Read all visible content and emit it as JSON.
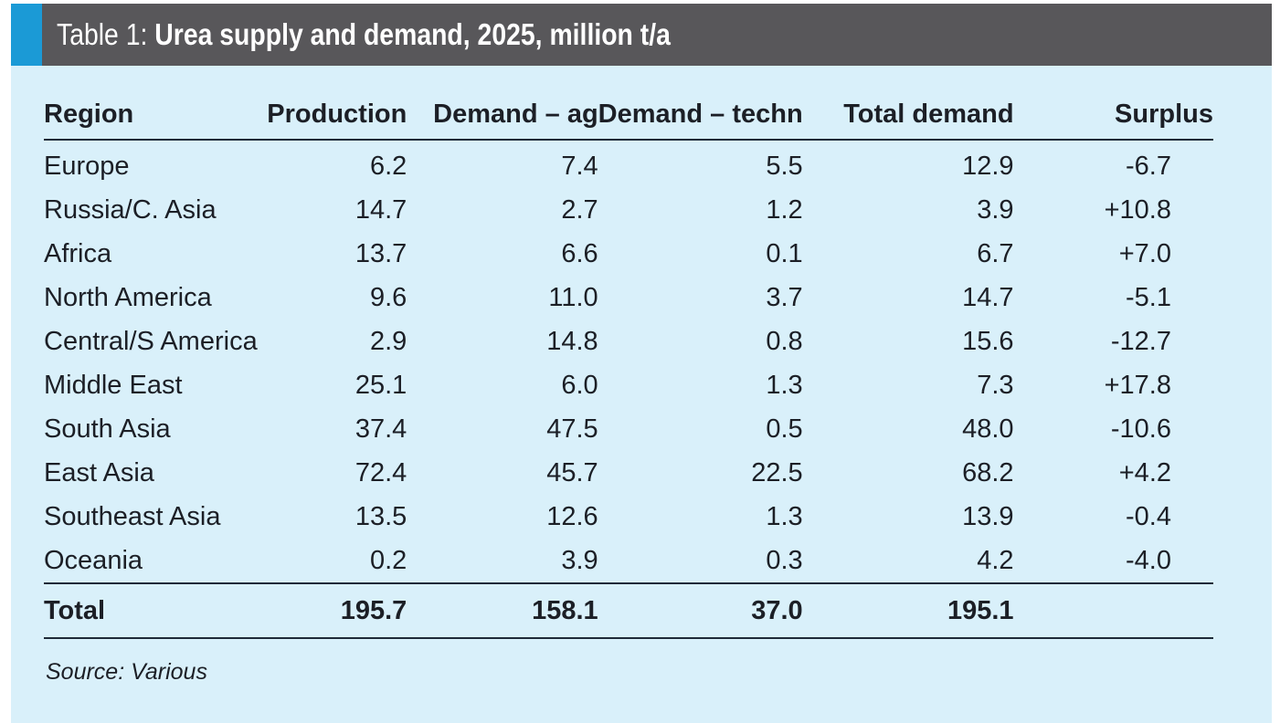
{
  "title": {
    "prefix": "Table 1: ",
    "main": "Urea supply and demand, 2025, million t/a"
  },
  "colors": {
    "header_bg": "#58575a",
    "accent": "#1b9ad6",
    "panel_bg": "#d9f0fa",
    "text": "#1c1f26"
  },
  "table": {
    "columns": [
      "Region",
      "Production",
      "Demand – ag",
      "Demand – techn",
      "Total demand",
      "Surplus"
    ],
    "rows": [
      [
        "Europe",
        "6.2",
        "7.4",
        "5.5",
        "12.9",
        "-6.7"
      ],
      [
        "Russia/C. Asia",
        "14.7",
        "2.7",
        "1.2",
        "3.9",
        "+10.8"
      ],
      [
        "Africa",
        "13.7",
        "6.6",
        "0.1",
        "6.7",
        "+7.0"
      ],
      [
        "North America",
        "9.6",
        "11.0",
        "3.7",
        "14.7",
        "-5.1"
      ],
      [
        "Central/S America",
        "2.9",
        "14.8",
        "0.8",
        "15.6",
        "-12.7"
      ],
      [
        "Middle East",
        "25.1",
        "6.0",
        "1.3",
        "7.3",
        "+17.8"
      ],
      [
        "South Asia",
        "37.4",
        "47.5",
        "0.5",
        "48.0",
        "-10.6"
      ],
      [
        "East Asia",
        "72.4",
        "45.7",
        "22.5",
        "68.2",
        "+4.2"
      ],
      [
        "Southeast Asia",
        "13.5",
        "12.6",
        "1.3",
        "13.9",
        "-0.4"
      ],
      [
        "Oceania",
        "0.2",
        "3.9",
        "0.3",
        "4.2",
        "-4.0"
      ]
    ],
    "total": [
      "Total",
      "195.7",
      "158.1",
      "37.0",
      "195.1",
      ""
    ]
  },
  "source": "Source: Various"
}
